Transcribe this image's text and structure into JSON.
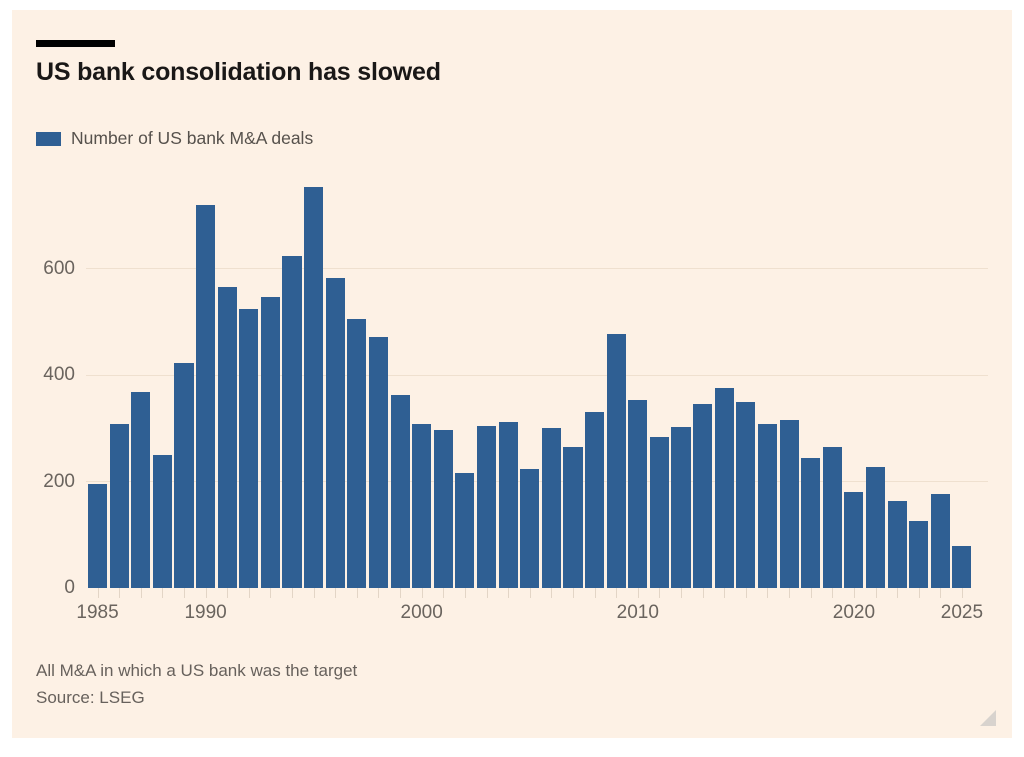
{
  "chart": {
    "title": "US bank consolidation has slowed",
    "legend_label": "Number of US bank M&A deals",
    "footnote": "All M&A in which a US bank was the target",
    "source": "Source: LSEG"
  },
  "chart_data": {
    "type": "bar",
    "title": "US bank consolidation has slowed",
    "series_name": "Number of US bank M&A deals",
    "categories": [
      1985,
      1986,
      1987,
      1988,
      1989,
      1990,
      1991,
      1992,
      1993,
      1994,
      1995,
      1996,
      1997,
      1998,
      1999,
      2000,
      2001,
      2002,
      2003,
      2004,
      2005,
      2006,
      2007,
      2008,
      2009,
      2010,
      2011,
      2012,
      2013,
      2014,
      2015,
      2016,
      2017,
      2018,
      2019,
      2020,
      2021,
      2022,
      2023,
      2024,
      2025
    ],
    "values": [
      196,
      308,
      368,
      250,
      423,
      720,
      565,
      525,
      546,
      624,
      753,
      583,
      506,
      472,
      363,
      309,
      296,
      216,
      304,
      312,
      224,
      300,
      264,
      330,
      478,
      353,
      284,
      302,
      346,
      375,
      350,
      308,
      315,
      245,
      265,
      180,
      228,
      164,
      126,
      177,
      79
    ],
    "xlabel": "",
    "ylabel": "",
    "ylim": [
      0,
      780
    ],
    "yticks": [
      0,
      200,
      400,
      600
    ],
    "xtick_labels": [
      "1985",
      "1990",
      "2000",
      "2010",
      "2020",
      "2025"
    ],
    "grid": "horizontal",
    "legend_position": "top-left",
    "footnote": "All M&A in which a US bank was the target",
    "source": "Source: LSEG"
  },
  "colors": {
    "bar": "#2f5f93",
    "background": "#fdf1e5",
    "gridline": "#efe0cf",
    "tick": "#e3d5c6",
    "axis_text": "#6a645e",
    "legend_text": "#56514c",
    "title_text": "#1a1817",
    "footer_text": "#67615c",
    "rule": "#000000",
    "resize_handle": "#d8d3ce"
  }
}
